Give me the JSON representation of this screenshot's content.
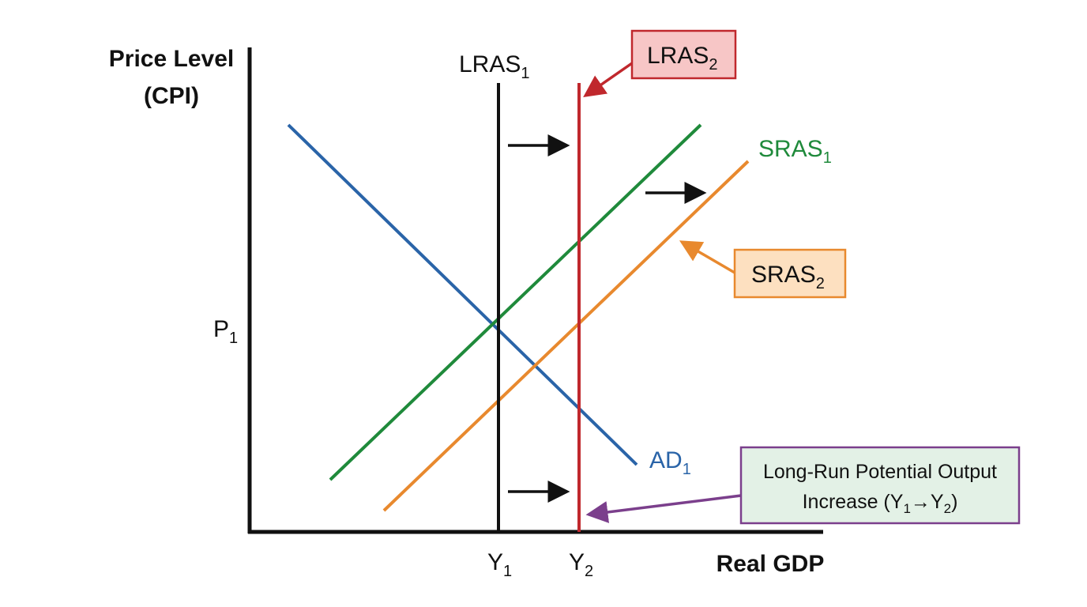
{
  "axes": {
    "y_label": [
      "Price Level",
      "(CPI)"
    ],
    "x_label": "Real GDP"
  },
  "ticks": {
    "p1": {
      "text": "P",
      "sub": "1"
    },
    "y1": {
      "text": "Y",
      "sub": "1"
    },
    "y2": {
      "text": "Y",
      "sub": "2"
    }
  },
  "curves": {
    "lras1": {
      "text": "LRAS",
      "sub": "1"
    },
    "sras1": {
      "text": "SRAS",
      "sub": "1"
    },
    "ad1": {
      "text": "AD",
      "sub": "1"
    }
  },
  "callouts": {
    "lras2": {
      "text": "LRAS",
      "sub": "2"
    },
    "sras2": {
      "text": "SRAS",
      "sub": "2"
    },
    "note": {
      "line1": "Long-Run Potential Output",
      "line2": [
        "Increase (Y",
        "1",
        "→",
        "Y",
        "2",
        ")"
      ]
    }
  }
}
